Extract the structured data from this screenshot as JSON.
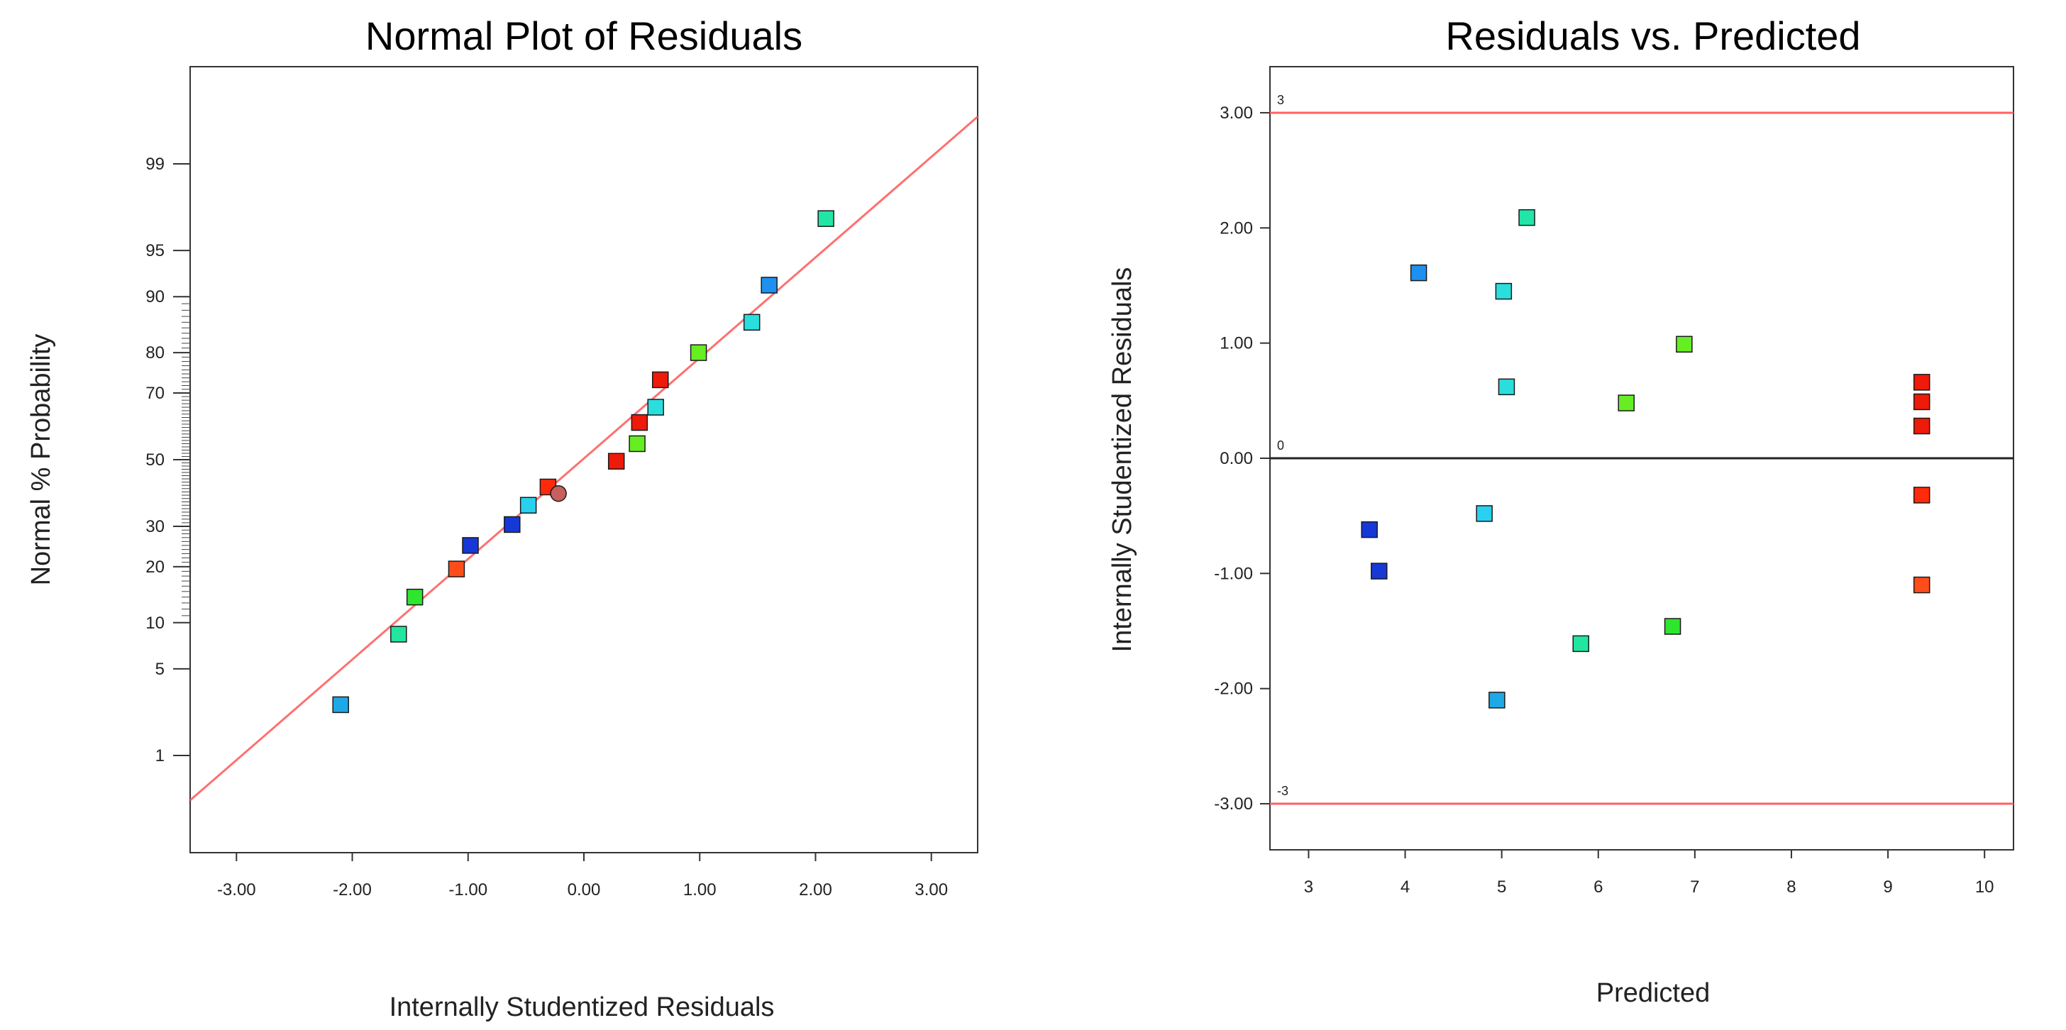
{
  "chart_data": [
    {
      "type": "scatter",
      "title": "Normal Plot of Residuals",
      "xlabel": "Internally Studentized Residuals",
      "ylabel": "Normal % Probability",
      "xlim": [
        -3.4,
        3.4
      ],
      "ylim": [
        0.1,
        99.9
      ],
      "x_ticks": [
        "-3.00",
        "-2.00",
        "-1.00",
        "0.00",
        "1.00",
        "2.00",
        "3.00"
      ],
      "x_tick_values": [
        -3,
        -2,
        -1,
        0,
        1,
        2,
        3
      ],
      "y_ticks": [
        "1",
        "5",
        "10",
        "20",
        "30",
        "50",
        "70",
        "80",
        "90",
        "95",
        "99"
      ],
      "y_tick_values": [
        1,
        5,
        10,
        20,
        30,
        50,
        70,
        80,
        90,
        95,
        99
      ],
      "reference_line": {
        "color": "#ff7070",
        "p1": [
          -3.4,
          0.37
        ],
        "p2": [
          3.4,
          99.65
        ]
      },
      "points": [
        {
          "x": -2.1,
          "y": 2.7,
          "color": "#1ea8e6"
        },
        {
          "x": -1.6,
          "y": 8.5,
          "color": "#22e6a0"
        },
        {
          "x": -1.46,
          "y": 14.0,
          "color": "#2ee62e"
        },
        {
          "x": -1.1,
          "y": 19.5,
          "color": "#ff4d1a"
        },
        {
          "x": -0.98,
          "y": 25.0,
          "color": "#1638d6"
        },
        {
          "x": -0.62,
          "y": 30.5,
          "color": "#1638d6"
        },
        {
          "x": -0.48,
          "y": 36.0,
          "color": "#2ad0f0"
        },
        {
          "x": -0.31,
          "y": 41.5,
          "color": "#ff2a0a"
        },
        {
          "x": -0.22,
          "y": 39.5,
          "color": "#c85f5f",
          "marker": "circle"
        },
        {
          "x": 0.28,
          "y": 49.5,
          "color": "#ee1a0a"
        },
        {
          "x": 0.46,
          "y": 55.0,
          "color": "#66ee22"
        },
        {
          "x": 0.48,
          "y": 61.5,
          "color": "#ee1a0a"
        },
        {
          "x": 0.62,
          "y": 66.0,
          "color": "#2adede"
        },
        {
          "x": 0.66,
          "y": 73.5,
          "color": "#ee1a0a"
        },
        {
          "x": 0.99,
          "y": 80.0,
          "color": "#66ee22"
        },
        {
          "x": 1.45,
          "y": 86.0,
          "color": "#2adede"
        },
        {
          "x": 1.6,
          "y": 91.5,
          "color": "#1e90f0"
        },
        {
          "x": 2.09,
          "y": 97.1,
          "color": "#22e6a8"
        }
      ]
    },
    {
      "type": "scatter",
      "title": "Residuals vs. Predicted",
      "xlabel": "Predicted",
      "ylabel": "Internally Studentized Residuals",
      "xlim": [
        2.6,
        10.3
      ],
      "ylim": [
        -3.4,
        3.4
      ],
      "x_ticks": [
        "3",
        "4",
        "5",
        "6",
        "7",
        "8",
        "9",
        "10"
      ],
      "x_tick_values": [
        3,
        4,
        5,
        6,
        7,
        8,
        9,
        10
      ],
      "y_ticks": [
        "-3.00",
        "-2.00",
        "-1.00",
        "0.00",
        "1.00",
        "2.00",
        "3.00"
      ],
      "y_tick_values": [
        -3,
        -2,
        -1,
        0,
        1,
        2,
        3
      ],
      "hlines": [
        {
          "y": 3,
          "label": "3",
          "color": "#ff6060"
        },
        {
          "y": 0,
          "label": "0",
          "color": "#222222"
        },
        {
          "y": -3,
          "label": "-3",
          "color": "#ff6060"
        }
      ],
      "points": [
        {
          "x": 4.14,
          "y": 1.61,
          "color": "#1e90f0"
        },
        {
          "x": 5.26,
          "y": 2.09,
          "color": "#22e6a8"
        },
        {
          "x": 5.02,
          "y": 1.45,
          "color": "#2adede"
        },
        {
          "x": 5.05,
          "y": 0.62,
          "color": "#2adede"
        },
        {
          "x": 6.89,
          "y": 0.99,
          "color": "#66ee22"
        },
        {
          "x": 6.29,
          "y": 0.48,
          "color": "#66ee22"
        },
        {
          "x": 9.35,
          "y": 0.66,
          "color": "#ee1a0a"
        },
        {
          "x": 9.35,
          "y": 0.49,
          "color": "#ee1a0a"
        },
        {
          "x": 9.35,
          "y": 0.28,
          "color": "#ee1a0a"
        },
        {
          "x": 9.35,
          "y": -0.32,
          "color": "#ff2a0a"
        },
        {
          "x": 9.35,
          "y": -1.1,
          "color": "#ff4d1a"
        },
        {
          "x": 3.63,
          "y": -0.62,
          "color": "#1638d6"
        },
        {
          "x": 3.73,
          "y": -0.98,
          "color": "#1638d6"
        },
        {
          "x": 4.82,
          "y": -0.48,
          "color": "#2ad0f0"
        },
        {
          "x": 4.95,
          "y": -2.1,
          "color": "#1ea8e6"
        },
        {
          "x": 5.82,
          "y": -1.61,
          "color": "#22e6a0"
        },
        {
          "x": 6.77,
          "y": -1.46,
          "color": "#2ee62e"
        }
      ]
    }
  ]
}
